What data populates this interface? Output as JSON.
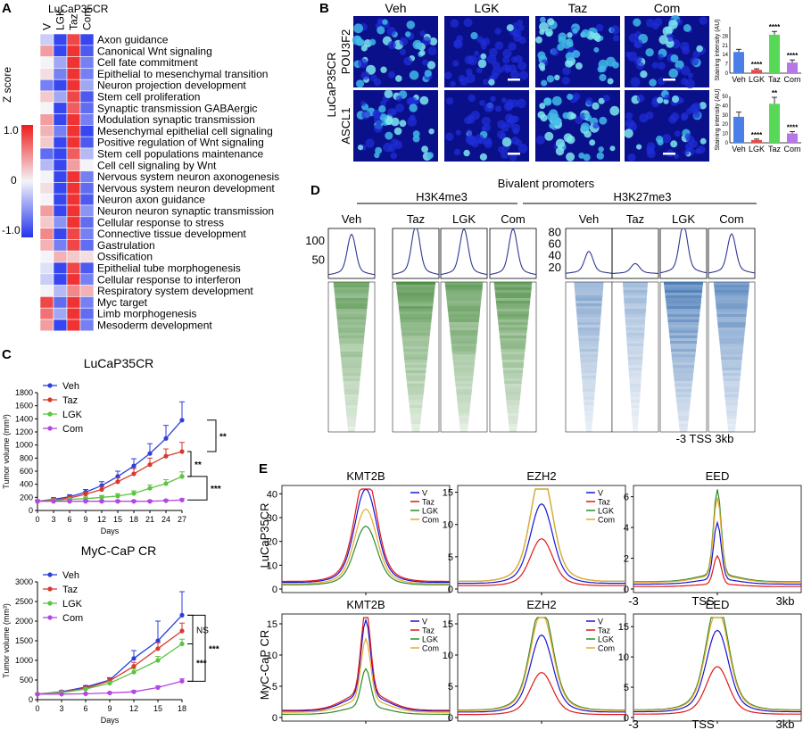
{
  "panels": {
    "A": {
      "letter": "A",
      "title": "LuCaP35CR",
      "columns": [
        "V",
        "LGK",
        "Taz",
        "Com"
      ],
      "legend_title": "Z score",
      "legend_ticks": [
        "1.0",
        "0",
        "-1.0"
      ],
      "colors": {
        "low": "#2233ee",
        "mid": "#f4f4f8",
        "high": "#ee1c1c"
      }
    },
    "B": {
      "letter": "B",
      "group_label": "LuCaP35CR",
      "columns": [
        "Veh",
        "LGK",
        "Taz",
        "Com"
      ],
      "rows": [
        "POU3F2",
        "ASCL1"
      ],
      "bar_charts": [
        {
          "ylabel": "Staining intensity (AU)",
          "yticks": [
            "0",
            "7",
            "14",
            "21",
            "28"
          ],
          "ymax": 35,
          "categories": [
            "Veh",
            "LGK",
            "Taz",
            "Com"
          ],
          "values": [
            16,
            2.5,
            29,
            8
          ],
          "errors": [
            2,
            0.8,
            2.5,
            2
          ],
          "sig": [
            "",
            "****",
            "****",
            "****"
          ],
          "colors": [
            "#4a7fe8",
            "#e84a4a",
            "#57d957",
            "#b877e6"
          ]
        },
        {
          "ylabel": "Staining intensity (AU)",
          "yticks": [
            "0",
            "10",
            "20",
            "30",
            "40",
            "50"
          ],
          "ymax": 50,
          "categories": [
            "Veh",
            "LGK",
            "Taz",
            "Com"
          ],
          "values": [
            28,
            3,
            42,
            10
          ],
          "errors": [
            5,
            1,
            7,
            2
          ],
          "sig": [
            "",
            "****",
            "**",
            "****"
          ],
          "colors": [
            "#4a7fe8",
            "#e84a4a",
            "#57d957",
            "#b877e6"
          ]
        }
      ]
    },
    "C": {
      "letter": "C"
    },
    "D": {
      "letter": "D",
      "title": "Bivalent promoters",
      "mark1": "H3K4me3",
      "mark2": "H3K27me3",
      "cols1": [
        "Veh",
        "Taz",
        "LGK",
        "Com"
      ],
      "cols2": [
        "Veh",
        "Taz",
        "LGK",
        "Com"
      ],
      "yticks1": [
        "100",
        "50"
      ],
      "yticks2": [
        "80",
        "60",
        "40",
        "20"
      ],
      "axis_label": "-3 TSS 3kb"
    },
    "E": {
      "letter": "E",
      "row_labels": [
        "LuCaP35CR",
        "MyC-CaP CR"
      ],
      "axis_ticks": [
        "-3",
        "TSS",
        "3kb"
      ]
    }
  },
  "chart_data": [
    {
      "type": "heatmap",
      "title": "LuCaP35CR",
      "columns": [
        "V",
        "LGK",
        "Taz",
        "Com"
      ],
      "rows": [
        "Axon guidance",
        "Canonical Wnt signaling",
        "Cell fate commitment",
        "Epithelial to mesenchymal transition",
        "Neuron projection development",
        "Stem cell proliferation",
        "Synaptic transmission GABAergic",
        "Modulation synaptic transmission",
        "Mesenchymal epithelial cell signaling",
        "Positive regulation of Wnt signaling",
        "Stem cell populations maintenance",
        "Cell cell signaling by Wnt",
        "Nervous system neuron axonogenesis",
        "Nervous system neuron development",
        "Neuron axon guidance",
        "Neuron neuron synaptic transmission",
        "Cellular response to stress",
        "Connective tissue development",
        "Gastrulation",
        "Ossification",
        "Epithelial tube morphogenesis",
        "Cellular response to interferon",
        "Respiratory system development",
        "Myc target",
        "Limb morphogenesis",
        "Mesoderm development"
      ],
      "values": [
        [
          -0.2,
          -0.9,
          0.8,
          -0.9
        ],
        [
          0.4,
          -0.9,
          0.9,
          -0.8
        ],
        [
          0.0,
          -0.4,
          0.9,
          -0.6
        ],
        [
          0.1,
          -0.6,
          0.9,
          -0.6
        ],
        [
          -0.6,
          -0.9,
          0.9,
          -0.4
        ],
        [
          0.2,
          -0.4,
          0.8,
          -0.8
        ],
        [
          0.0,
          -0.9,
          0.7,
          -0.7
        ],
        [
          0.4,
          -0.9,
          0.9,
          -0.6
        ],
        [
          0.3,
          -0.6,
          0.9,
          -0.9
        ],
        [
          0.2,
          -0.9,
          0.9,
          -0.8
        ],
        [
          -0.7,
          -0.9,
          0.7,
          -0.3
        ],
        [
          -0.3,
          -0.9,
          0.4,
          0.0
        ],
        [
          0.0,
          -0.9,
          0.9,
          -0.6
        ],
        [
          0.1,
          -0.9,
          0.9,
          -0.7
        ],
        [
          0.0,
          -0.9,
          0.9,
          -0.8
        ],
        [
          0.4,
          -0.9,
          0.9,
          -0.5
        ],
        [
          0.2,
          -0.5,
          0.9,
          -0.7
        ],
        [
          0.5,
          -0.9,
          0.8,
          -0.6
        ],
        [
          0.3,
          -0.6,
          0.8,
          -0.7
        ],
        [
          0.0,
          0.3,
          0.2,
          0.1
        ],
        [
          -0.1,
          -0.9,
          0.8,
          -0.8
        ],
        [
          -0.2,
          -0.9,
          0.9,
          -0.6
        ],
        [
          0.0,
          -0.3,
          0.5,
          0.3
        ],
        [
          0.8,
          -0.7,
          0.9,
          -0.6
        ],
        [
          0.6,
          -0.4,
          0.9,
          -0.7
        ],
        [
          0.4,
          -0.9,
          0.9,
          -0.6
        ]
      ],
      "scale_range": [
        -1.0,
        1.0
      ]
    },
    {
      "type": "line",
      "title": "LuCaP35CR",
      "xlabel": "Days",
      "ylabel": "Tumor volume (mm³)",
      "x": [
        0,
        3,
        6,
        9,
        12,
        15,
        18,
        21,
        24,
        27
      ],
      "xlim": [
        0,
        27
      ],
      "ylim": [
        0,
        1800
      ],
      "yticks": [
        0,
        200,
        400,
        600,
        800,
        1000,
        1200,
        1400,
        1600,
        1800
      ],
      "series": [
        {
          "name": "Veh",
          "color": "#2a3fdc",
          "values": [
            140,
            170,
            210,
            280,
            380,
            520,
            680,
            870,
            1100,
            1380
          ],
          "errors": [
            20,
            25,
            30,
            40,
            60,
            80,
            110,
            150,
            200,
            280
          ]
        },
        {
          "name": "Taz",
          "color": "#d63a2f",
          "values": [
            140,
            160,
            190,
            250,
            320,
            440,
            560,
            700,
            830,
            900
          ],
          "errors": [
            20,
            20,
            30,
            35,
            50,
            60,
            80,
            100,
            110,
            140
          ]
        },
        {
          "name": "LGK",
          "color": "#5ec242",
          "values": [
            140,
            150,
            170,
            180,
            200,
            220,
            260,
            340,
            410,
            520
          ],
          "errors": [
            15,
            20,
            20,
            25,
            30,
            35,
            40,
            50,
            60,
            70
          ]
        },
        {
          "name": "Com",
          "color": "#b347e0",
          "values": [
            140,
            140,
            140,
            140,
            140,
            140,
            140,
            140,
            150,
            160
          ],
          "errors": [
            15,
            15,
            15,
            15,
            15,
            15,
            15,
            15,
            15,
            20
          ]
        }
      ],
      "significance": [
        "**",
        "**",
        "***"
      ]
    },
    {
      "type": "line",
      "title": "MyC-CaP CR",
      "xlabel": "Days",
      "ylabel": "Tumor volume (mm³)",
      "x": [
        0,
        3,
        6,
        9,
        12,
        15,
        18
      ],
      "xlim": [
        0,
        18
      ],
      "ylim": [
        0,
        3000
      ],
      "yticks": [
        0,
        500,
        1000,
        1500,
        2000,
        2500,
        3000
      ],
      "series": [
        {
          "name": "Veh",
          "color": "#2a3fdc",
          "values": [
            140,
            200,
            320,
            500,
            1050,
            1500,
            2150
          ],
          "errors": [
            20,
            30,
            40,
            60,
            200,
            500,
            600
          ]
        },
        {
          "name": "Taz",
          "color": "#d63a2f",
          "values": [
            140,
            190,
            290,
            480,
            850,
            1300,
            1750
          ],
          "errors": [
            20,
            25,
            40,
            60,
            100,
            150,
            200
          ]
        },
        {
          "name": "LGK",
          "color": "#5ec242",
          "values": [
            140,
            180,
            270,
            420,
            700,
            1000,
            1420
          ],
          "errors": [
            20,
            25,
            30,
            50,
            80,
            100,
            120
          ]
        },
        {
          "name": "Com",
          "color": "#b347e0",
          "values": [
            140,
            140,
            150,
            170,
            200,
            310,
            470
          ],
          "errors": [
            15,
            15,
            15,
            20,
            30,
            40,
            60
          ]
        }
      ],
      "significance": [
        "NS",
        "***",
        "***"
      ]
    },
    {
      "type": "line",
      "title": "Bivalent promoters",
      "series": [
        {
          "name": "H3K4me3 Veh",
          "color": "#2f3890",
          "peak": 100
        },
        {
          "name": "H3K4me3 Taz",
          "color": "#2f3890",
          "peak": 120
        },
        {
          "name": "H3K4me3 LGK",
          "color": "#2f3890",
          "peak": 112
        },
        {
          "name": "H3K4me3 Com",
          "color": "#2f3890",
          "peak": 112
        },
        {
          "name": "H3K27me3 Veh",
          "color": "#2f3890",
          "peak": 40
        },
        {
          "name": "H3K27me3 Taz",
          "color": "#2f3890",
          "peak": 22
        },
        {
          "name": "H3K27me3 LGK",
          "color": "#2f3890",
          "peak": 80
        },
        {
          "name": "H3K27me3 Com",
          "color": "#2f3890",
          "peak": 66
        }
      ]
    },
    {
      "type": "line",
      "panels": [
        {
          "title": "KMT2B",
          "row": 0,
          "ylim": [
            0,
            42
          ],
          "yticks": [
            0,
            10,
            20,
            30,
            40
          ],
          "peaks": {
            "V": 35,
            "Taz": 40,
            "LGK": 22,
            "Com": 28
          },
          "shape": "broad"
        },
        {
          "title": "EZH2",
          "row": 0,
          "ylim": [
            0,
            15.5
          ],
          "yticks": [
            0,
            5,
            10,
            15
          ],
          "peaks": {
            "V": 11,
            "Taz": 6.5,
            "LGK": 15,
            "Com": 15
          },
          "shape": "broad"
        },
        {
          "title": "EED",
          "row": 0,
          "ylim": [
            0,
            6.5
          ],
          "yticks": [
            0,
            2,
            4,
            6
          ],
          "peaks": {
            "V": 4.0,
            "Taz": 2.0,
            "LGK": 6.0,
            "Com": 5.5
          },
          "shape": "sharp"
        },
        {
          "title": "KMT2B",
          "row": 1,
          "ylim": [
            0,
            16
          ],
          "yticks": [
            0,
            5,
            10,
            15
          ],
          "peaks": {
            "V": 13,
            "Taz": 14.5,
            "LGK": 6.5,
            "Com": 10.5
          },
          "shape": "narrow"
        },
        {
          "title": "EZH2",
          "row": 1,
          "ylim": [
            0,
            16
          ],
          "yticks": [
            0,
            5,
            10,
            15
          ],
          "peaks": {
            "V": 11,
            "Taz": 6,
            "LGK": 15,
            "Com": 14
          },
          "shape": "broad"
        },
        {
          "title": "EED",
          "row": 1,
          "ylim": [
            0,
            16.5
          ],
          "yticks": [
            0,
            5,
            10,
            15
          ],
          "peaks": {
            "V": 12,
            "Taz": 7,
            "LGK": 16,
            "Com": 15
          },
          "shape": "broad"
        }
      ],
      "legend": [
        {
          "name": "V",
          "color": "#1515d8"
        },
        {
          "name": "Taz",
          "color": "#e01818"
        },
        {
          "name": "LGK",
          "color": "#2e8a2e"
        },
        {
          "name": "Com",
          "color": "#e8a82a"
        }
      ]
    }
  ]
}
